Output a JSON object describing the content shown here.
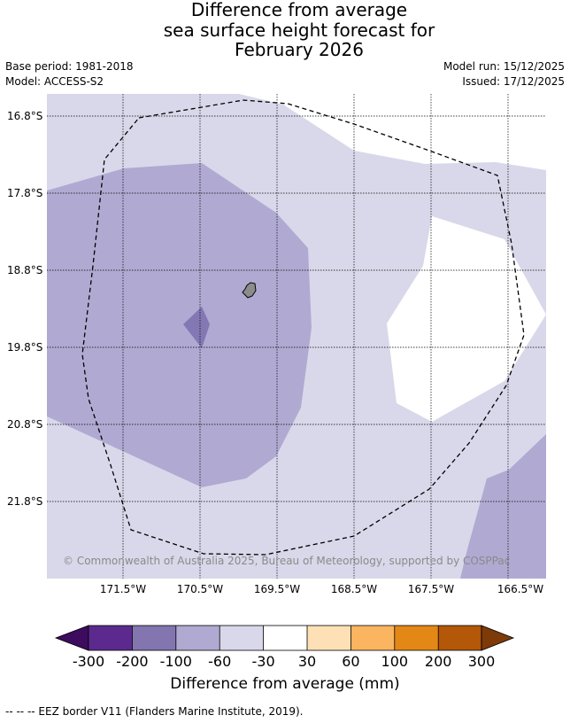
{
  "header": {
    "title_lines": [
      "Difference from average",
      "sea surface height forecast for",
      "February 2026"
    ],
    "base_period": "Base period: 1981-2018",
    "model": "Model: ACCESS-S2",
    "model_run": "Model run: 15/12/2025",
    "issued": "Issued: 17/12/2025"
  },
  "map": {
    "latitudes": [
      "16.8°S",
      "17.8°S",
      "18.8°S",
      "19.8°S",
      "20.8°S",
      "21.8°S"
    ],
    "longitudes": [
      "171.5°W",
      "170.5°W",
      "169.5°W",
      "168.5°W",
      "167.5°W",
      "166.5°W"
    ],
    "copyright": "© Commonwealth of Australia 2025, Bureau of Meteorology, supported by COSPPac",
    "colors": {
      "ocean_light": "#d8d8ea",
      "ocean_mid": "#b0aad2",
      "ocean_dark": "#8478b4",
      "neutral": "#ffffff",
      "land": "#8c8c8c"
    }
  },
  "colorbar": {
    "ticks": [
      "-300",
      "-200",
      "-100",
      "-60",
      "-30",
      "30",
      "60",
      "100",
      "200",
      "300"
    ],
    "colors": [
      "#3d0c5e",
      "#5c2a8e",
      "#8275b0",
      "#b0aad2",
      "#d8d8ea",
      "#ffffff",
      "#fde0b6",
      "#fbb45f",
      "#e38816",
      "#b35708",
      "#7e3b08"
    ],
    "label": "Difference from average (mm)"
  },
  "footnote": "--  --  -- EEZ border V11 (Flanders Marine Institute, 2019)."
}
